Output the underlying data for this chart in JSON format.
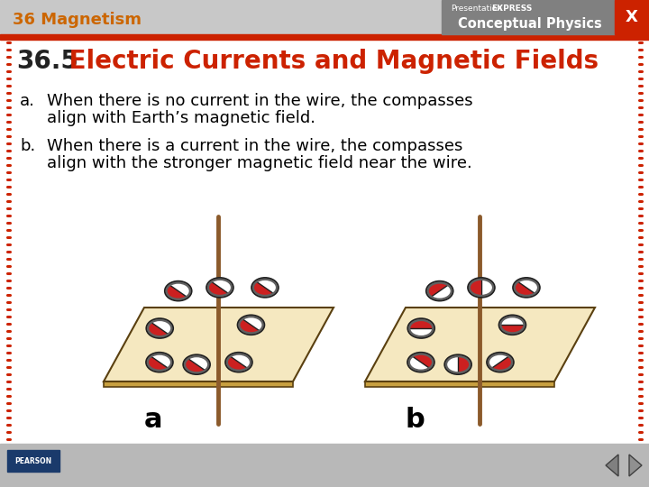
{
  "header_bg": "#c8c8c8",
  "header_text": "36 Magnetism",
  "header_text_color": "#cc6600",
  "header_bar_color": "#cc2200",
  "header_logo_bg": "#808080",
  "title_number": "36.5",
  "title_text": " Electric Currents and Magnetic Fields",
  "title_number_color": "#222222",
  "title_text_color": "#cc2200",
  "body_bg": "#ffffff",
  "body_text_color": "#000000",
  "item_a_line1": "When there is no current in the wire, the compasses",
  "item_a_line2": "align with Earth’s magnetic field.",
  "item_b_line1": "When there is a current in the wire, the compasses",
  "item_b_line2": "align with the stronger magnetic field near the wire.",
  "footer_bg": "#b8b8b8",
  "dot_border_color": "#cc2200",
  "label_a": "a",
  "label_b": "b",
  "plate_top_color": "#f5e8c0",
  "plate_edge_color": "#c8a040",
  "plate_outline": "#5a4010",
  "wire_color": "#8b5a2b",
  "compass_red": "#cc2020",
  "compass_white": "#ffffff",
  "compass_rim": "#606060",
  "compass_dark": "#202020"
}
